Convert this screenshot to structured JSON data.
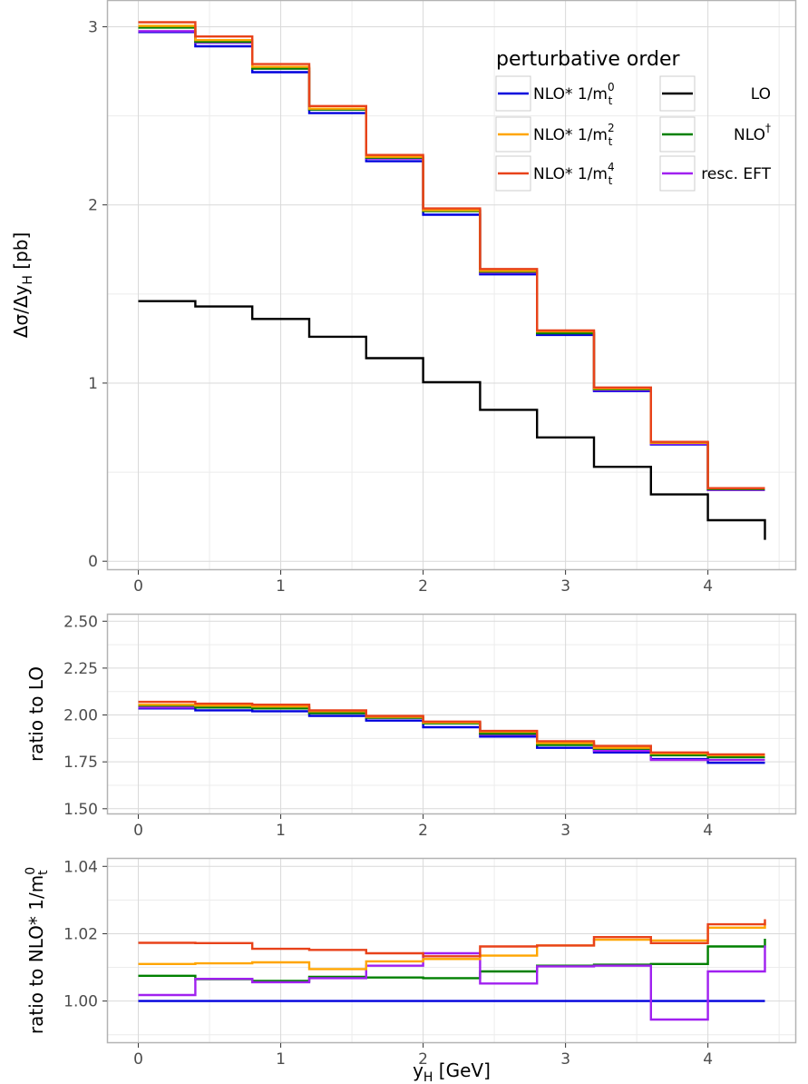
{
  "colors": {
    "nlo0": "#0000dd",
    "nlo2": "#ffa500",
    "nlo4": "#e8421a",
    "lo": "#000000",
    "nlodag": "#008000",
    "eft": "#a020f0",
    "grid_major": "#d9d9d9",
    "grid_minor": "#ececec",
    "panel_border": "#b3b3b3"
  },
  "legend": {
    "title": "perturbative order",
    "entries": [
      {
        "key": "nlo0",
        "label": "NLO* 1/m",
        "sup": "0",
        "sub": "t"
      },
      {
        "key": "lo",
        "label": "LO",
        "sup": "",
        "sub": ""
      },
      {
        "key": "nlo2",
        "label": "NLO* 1/m",
        "sup": "2",
        "sub": "t"
      },
      {
        "key": "nlodag",
        "label": "NLO",
        "sup": "†",
        "sub": ""
      },
      {
        "key": "nlo4",
        "label": "NLO* 1/m",
        "sup": "4",
        "sub": "t"
      },
      {
        "key": "eft",
        "label": "resc. EFT",
        "sup": "",
        "sub": ""
      }
    ]
  },
  "chart_data": [
    {
      "type": "line",
      "step": true,
      "ylabel": {
        "main": "Δσ/Δy",
        "sub": "H",
        "unit": " [pb]"
      },
      "xlim": [
        -0.22,
        4.62
      ],
      "ylim": [
        -0.05,
        3.15
      ],
      "xticks": [
        0,
        1,
        2,
        3,
        4
      ],
      "yticks": [
        0,
        1,
        2,
        3
      ],
      "grid": true,
      "legend_position": "top-right",
      "x": [
        0,
        0.4,
        0.8,
        1.2,
        1.6,
        2.0,
        2.4,
        2.8,
        3.2,
        3.6,
        4.0,
        4.4
      ],
      "series": [
        {
          "key": "lo",
          "name": "LO",
          "values": [
            1.46,
            1.43,
            1.36,
            1.26,
            1.14,
            1.005,
            0.85,
            0.695,
            0.53,
            0.375,
            0.23,
            0.12
          ]
        },
        {
          "key": "nlo0",
          "name": "NLO* 1/m_t^0",
          "values": [
            2.97,
            2.89,
            2.745,
            2.515,
            2.245,
            1.945,
            1.61,
            1.27,
            0.955,
            0.655,
            0.4,
            0.4
          ]
        },
        {
          "key": "eft",
          "name": "resc. EFT",
          "values": [
            2.975,
            2.91,
            2.765,
            2.535,
            2.26,
            1.97,
            1.62,
            1.28,
            0.96,
            0.66,
            0.4,
            0.4
          ]
        },
        {
          "key": "nlodag",
          "name": "NLO†",
          "values": [
            2.995,
            2.915,
            2.765,
            2.535,
            2.265,
            1.965,
            1.625,
            1.28,
            0.965,
            0.665,
            0.405,
            0.405
          ]
        },
        {
          "key": "nlo2",
          "name": "NLO* 1/m_t^2",
          "values": [
            3.005,
            2.925,
            2.775,
            2.54,
            2.27,
            1.97,
            1.63,
            1.29,
            0.97,
            0.665,
            0.41,
            0.41
          ]
        },
        {
          "key": "nlo4",
          "name": "NLO* 1/m_t^4",
          "values": [
            3.025,
            2.945,
            2.79,
            2.555,
            2.28,
            1.98,
            1.64,
            1.295,
            0.975,
            0.67,
            0.41,
            0.41
          ]
        }
      ]
    },
    {
      "type": "line",
      "step": true,
      "ylabel": {
        "main": "ratio to LO",
        "sub": "",
        "unit": ""
      },
      "xlim": [
        -0.22,
        4.62
      ],
      "ylim": [
        1.47,
        2.54
      ],
      "xticks": [
        0,
        1,
        2,
        3,
        4
      ],
      "yticks": [
        1.5,
        1.75,
        2.0,
        2.25,
        2.5
      ],
      "ytick_labels": [
        "1.50",
        "1.75",
        "2.00",
        "2.25",
        "2.50"
      ],
      "grid": true,
      "x": [
        0,
        0.4,
        0.8,
        1.2,
        1.6,
        2.0,
        2.4,
        2.8,
        3.2,
        3.6,
        4.0,
        4.4
      ],
      "series": [
        {
          "key": "nlo0",
          "name": "NLO* 1/m_t^0",
          "values": [
            2.035,
            2.025,
            2.02,
            1.995,
            1.97,
            1.935,
            1.885,
            1.825,
            1.8,
            1.765,
            1.745,
            1.745
          ]
        },
        {
          "key": "eft",
          "name": "resc. EFT",
          "values": [
            2.04,
            2.04,
            2.035,
            2.01,
            1.985,
            1.96,
            1.895,
            1.845,
            1.81,
            1.76,
            1.76,
            1.76
          ]
        },
        {
          "key": "nlodag",
          "name": "NLO†",
          "values": [
            2.05,
            2.04,
            2.035,
            2.01,
            1.985,
            1.955,
            1.9,
            1.84,
            1.82,
            1.785,
            1.775,
            1.775
          ]
        },
        {
          "key": "nlo2",
          "name": "NLO* 1/m_t^2",
          "values": [
            2.055,
            2.05,
            2.045,
            2.02,
            1.99,
            1.96,
            1.91,
            1.85,
            1.825,
            1.795,
            1.785,
            1.785
          ]
        },
        {
          "key": "nlo4",
          "name": "NLO* 1/m_t^4",
          "values": [
            2.07,
            2.06,
            2.055,
            2.025,
            1.995,
            1.965,
            1.915,
            1.86,
            1.835,
            1.8,
            1.79,
            1.79
          ]
        }
      ]
    },
    {
      "type": "line",
      "step": true,
      "ylabel": {
        "main": "ratio to NLO* 1/m",
        "sub": "t",
        "sup": "0",
        "unit": ""
      },
      "xlabel": {
        "main": "y",
        "sub": "H",
        "unit": " [GeV]"
      },
      "xlim": [
        -0.22,
        4.62
      ],
      "ylim": [
        0.9875,
        1.0425
      ],
      "xticks": [
        0,
        1,
        2,
        3,
        4
      ],
      "yticks": [
        1.0,
        1.02,
        1.04
      ],
      "ytick_labels": [
        "1.00",
        "1.02",
        "1.04"
      ],
      "grid": true,
      "x": [
        0,
        0.4,
        0.8,
        1.2,
        1.6,
        2.0,
        2.4,
        2.8,
        3.2,
        3.6,
        4.0,
        4.4
      ],
      "series": [
        {
          "key": "nlo0",
          "name": "NLO* 1/m_t^0",
          "values": [
            1.0,
            1.0,
            1.0,
            1.0,
            1.0,
            1.0,
            1.0,
            1.0,
            1.0,
            1.0,
            1.0,
            1.0
          ]
        },
        {
          "key": "nlodag",
          "name": "NLO†",
          "values": [
            1.0075,
            1.0065,
            1.006,
            1.0072,
            1.007,
            1.0068,
            1.0088,
            1.0105,
            1.0108,
            1.011,
            1.0162,
            1.0185
          ]
        },
        {
          "key": "eft",
          "name": "resc. EFT",
          "values": [
            1.0018,
            1.0066,
            1.0056,
            1.0068,
            1.0105,
            1.0142,
            1.0052,
            1.0103,
            1.0105,
            0.9945,
            1.0088,
            1.0165
          ]
        },
        {
          "key": "nlo2",
          "name": "NLO* 1/m_t^2",
          "values": [
            1.011,
            1.0112,
            1.0115,
            1.0095,
            1.0118,
            1.0125,
            1.0135,
            1.0165,
            1.0182,
            1.018,
            1.0218,
            1.0235
          ]
        },
        {
          "key": "nlo4",
          "name": "NLO* 1/m_t^4",
          "values": [
            1.0173,
            1.0172,
            1.0155,
            1.0152,
            1.0142,
            1.0133,
            1.0162,
            1.0165,
            1.019,
            1.0172,
            1.0228,
            1.0243
          ]
        }
      ]
    }
  ]
}
